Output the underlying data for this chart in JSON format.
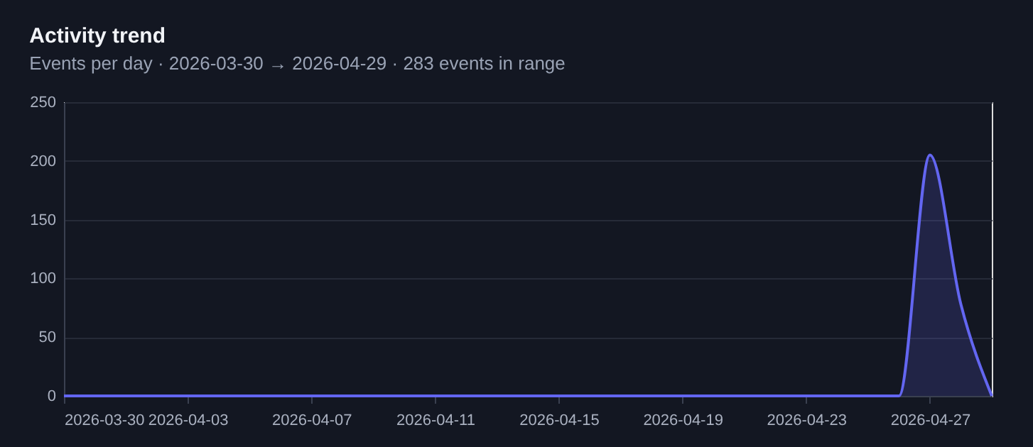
{
  "chart_data": {
    "type": "area",
    "title": "Activity trend",
    "subtitle": "Events per day · 2026-03-30 → 2026-04-29 · 283 events in range",
    "x": [
      "2026-03-30",
      "2026-03-31",
      "2026-04-01",
      "2026-04-02",
      "2026-04-03",
      "2026-04-04",
      "2026-04-05",
      "2026-04-06",
      "2026-04-07",
      "2026-04-08",
      "2026-04-09",
      "2026-04-10",
      "2026-04-11",
      "2026-04-12",
      "2026-04-13",
      "2026-04-14",
      "2026-04-15",
      "2026-04-16",
      "2026-04-17",
      "2026-04-18",
      "2026-04-19",
      "2026-04-20",
      "2026-04-21",
      "2026-04-22",
      "2026-04-23",
      "2026-04-24",
      "2026-04-25",
      "2026-04-26",
      "2026-04-27",
      "2026-04-28",
      "2026-04-29"
    ],
    "series": [
      {
        "color": "#6366f1",
        "values": [
          0,
          0,
          0,
          0,
          0,
          0,
          0,
          0,
          0,
          0,
          0,
          0,
          0,
          0,
          0,
          0,
          0,
          0,
          0,
          0,
          0,
          0,
          0,
          0,
          0,
          0,
          0,
          0,
          205,
          78,
          0
        ]
      }
    ],
    "xlim": [
      "2026-03-30",
      "2026-04-29"
    ],
    "xticks": [
      "2026-03-30",
      "2026-04-03",
      "2026-04-07",
      "2026-04-11",
      "2026-04-15",
      "2026-04-19",
      "2026-04-23",
      "2026-04-27"
    ],
    "ylim": [
      0,
      250
    ],
    "yticks": [
      0,
      50,
      100,
      150,
      200,
      250
    ],
    "grid": "y",
    "marker": "none",
    "line_style": "solid"
  }
}
